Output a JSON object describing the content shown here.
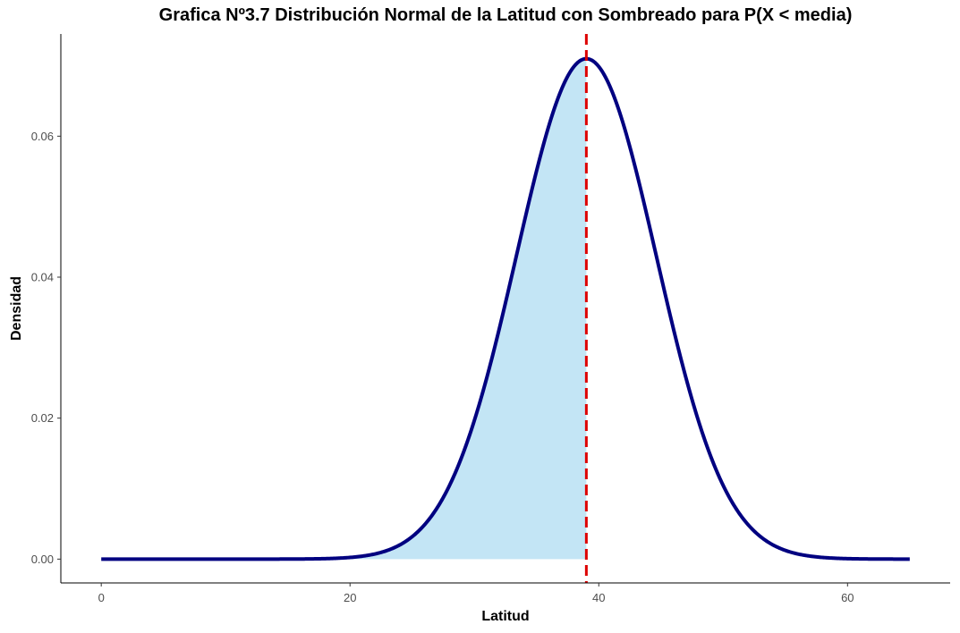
{
  "chart_data": {
    "type": "area",
    "title": "Grafica Nº3.7 Distribución Normal de la Latitud con Sombreado para P(X < media)",
    "xlabel": "Latitud",
    "ylabel": "Densidad",
    "xlim": [
      -3.25,
      68.25
    ],
    "ylim": [
      -0.00338,
      0.0745
    ],
    "x_ticks": [
      0,
      20,
      40,
      60
    ],
    "x_tick_labels": [
      "0",
      "20",
      "40",
      "60"
    ],
    "y_ticks": [
      0.0,
      0.02,
      0.04,
      0.06
    ],
    "y_tick_labels": [
      "0.00",
      "0.02",
      "0.04",
      "0.06"
    ],
    "grid": false,
    "distribution": {
      "mean": 39.0,
      "sd": 5.62,
      "x_min": 0,
      "x_max": 65
    },
    "mean_line": {
      "x": 39.0,
      "style": "dashed"
    },
    "shade_region": {
      "from": 0,
      "to": 39.0
    },
    "colors": {
      "curve": "#000080",
      "fill": "#c3e5f5",
      "mean_line": "#dd0000",
      "axis": "#000000",
      "tick_text": "#4d4d4d"
    }
  }
}
